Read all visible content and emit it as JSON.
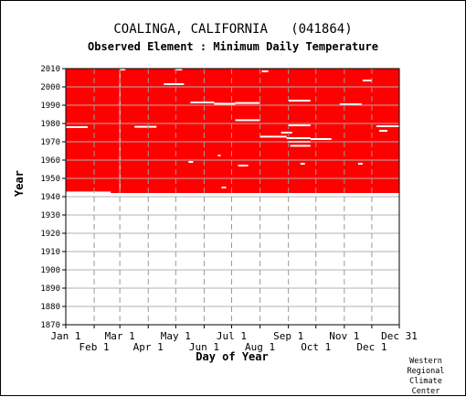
{
  "chart_data": {
    "type": "heatmap",
    "title": "COALINGA, CALIFORNIA   (041864)",
    "subtitle": "Observed Element : Minimum Daily Temperature",
    "xlabel": "Day of Year",
    "ylabel": "Year",
    "xlim": [
      1,
      365
    ],
    "ylim": [
      1870,
      2010
    ],
    "x_ticks_row1": [
      {
        "label": "Jan 1",
        "day": 1
      },
      {
        "label": "Mar 1",
        "day": 60
      },
      {
        "label": "May 1",
        "day": 121
      },
      {
        "label": "Jul 1",
        "day": 182
      },
      {
        "label": "Sep 1",
        "day": 244
      },
      {
        "label": "Nov 1",
        "day": 305
      },
      {
        "label": "Dec 31",
        "day": 365
      }
    ],
    "x_ticks_row2": [
      {
        "label": "Feb 1",
        "day": 32
      },
      {
        "label": "Apr 1",
        "day": 91
      },
      {
        "label": "Jun 1",
        "day": 152
      },
      {
        "label": "Aug 1",
        "day": 213
      },
      {
        "label": "Oct 1",
        "day": 274
      },
      {
        "label": "Dec 1",
        "day": 335
      }
    ],
    "y_ticks": [
      1870,
      1880,
      1890,
      1900,
      1910,
      1920,
      1930,
      1940,
      1950,
      1960,
      1970,
      1980,
      1990,
      2000,
      2010
    ],
    "present_color": "#ff0000",
    "missing_color": "#ffffff",
    "present_periods": [
      {
        "start_year": 1941.0,
        "end_year": 2010.0,
        "start_day": 1,
        "end_day": 365
      }
    ],
    "missing_segments": [
      {
        "year": 1942.3,
        "start_day": 1,
        "end_day": 50
      },
      {
        "year": 1941.5,
        "start_day": 1,
        "end_day": 365
      },
      {
        "year": 1978,
        "start_day": 1,
        "end_day": 25
      },
      {
        "year": 1978.2,
        "start_day": 76,
        "end_day": 100
      },
      {
        "year": 2001.5,
        "start_day": 108,
        "end_day": 130
      },
      {
        "year": 1991.5,
        "start_day": 137,
        "end_day": 163
      },
      {
        "year": 1990.8,
        "start_day": 163,
        "end_day": 186
      },
      {
        "year": 1991.2,
        "start_day": 186,
        "end_day": 213
      },
      {
        "year": 1981.8,
        "start_day": 186,
        "end_day": 213
      },
      {
        "year": 1972.8,
        "start_day": 213,
        "end_day": 242
      },
      {
        "year": 1972.0,
        "start_day": 242,
        "end_day": 268
      },
      {
        "year": 1970.0,
        "start_day": 243,
        "end_day": 268
      },
      {
        "year": 1967.8,
        "start_day": 246,
        "end_day": 268
      },
      {
        "year": 1975.0,
        "start_day": 236,
        "end_day": 248
      },
      {
        "year": 1979.0,
        "start_day": 244,
        "end_day": 268
      },
      {
        "year": 1992.5,
        "start_day": 244,
        "end_day": 268
      },
      {
        "year": 1971.5,
        "start_day": 268,
        "end_day": 291
      },
      {
        "year": 1990.5,
        "start_day": 300,
        "end_day": 324
      },
      {
        "year": 1978.5,
        "start_day": 340,
        "end_day": 365
      },
      {
        "year": 1976.0,
        "start_day": 343,
        "end_day": 352
      },
      {
        "year": 1957.0,
        "start_day": 189,
        "end_day": 200
      },
      {
        "year": 1962.5,
        "start_day": 167,
        "end_day": 170
      },
      {
        "year": 1945.0,
        "start_day": 171,
        "end_day": 176
      },
      {
        "year": 2009.5,
        "start_day": 60,
        "end_day": 66
      },
      {
        "year": 2009.5,
        "start_day": 120,
        "end_day": 128
      },
      {
        "year": 2008.5,
        "start_day": 215,
        "end_day": 222
      },
      {
        "year": 2003.5,
        "start_day": 325,
        "end_day": 335
      },
      {
        "year": 1959.0,
        "start_day": 135,
        "end_day": 140
      },
      {
        "year": 1958.0,
        "start_day": 257,
        "end_day": 262
      },
      {
        "year": 1958.0,
        "start_day": 320,
        "end_day": 325
      }
    ]
  },
  "credit_lines": [
    "Western",
    "Regional",
    "Climate",
    "Center"
  ]
}
